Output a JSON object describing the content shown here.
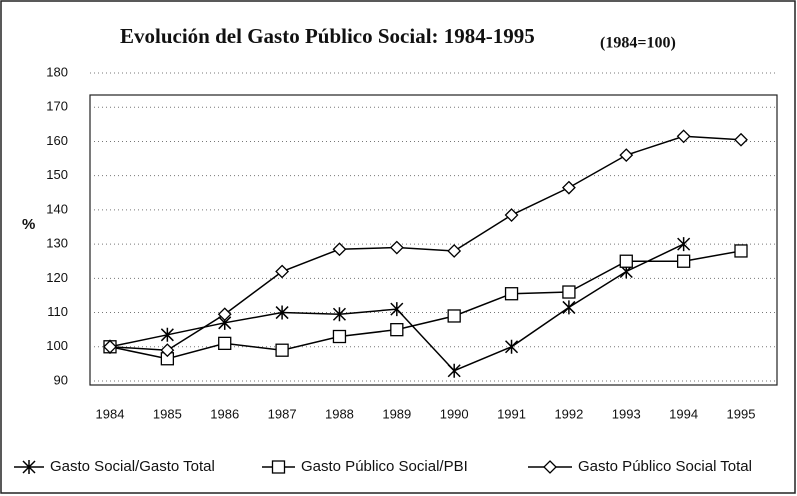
{
  "chart_data": {
    "type": "line",
    "title": "Evolución del Gasto Público Social: 1984-1995",
    "subtitle": "(1984=100)",
    "y_label": "%",
    "categories": [
      "1984",
      "1985",
      "1986",
      "1987",
      "1988",
      "1989",
      "1990",
      "1991",
      "1992",
      "1993",
      "1994",
      "1995"
    ],
    "series": [
      {
        "name": "Gasto Social/Gasto Total",
        "color": "#000000",
        "marker": "asterisk",
        "values": [
          100,
          103.5,
          107,
          110,
          109.5,
          111,
          93,
          100,
          111.5,
          122,
          130,
          null
        ]
      },
      {
        "name": "Gasto Público Social/PBI",
        "color": "#000000",
        "marker": "square",
        "values": [
          100,
          96.5,
          101,
          99,
          103,
          105,
          109,
          115.5,
          116,
          125,
          125,
          128
        ]
      },
      {
        "name": "Gasto Público Social Total",
        "color": "#000000",
        "marker": "diamond",
        "values": [
          100,
          99,
          109.5,
          122,
          128.5,
          129,
          128,
          138.5,
          146.5,
          156,
          161.5,
          160.5
        ]
      }
    ],
    "ylim": [
      90,
      180
    ],
    "yticks": [
      90,
      100,
      110,
      120,
      130,
      140,
      150,
      160,
      170,
      180
    ],
    "grid": true,
    "legend": "bottom"
  }
}
